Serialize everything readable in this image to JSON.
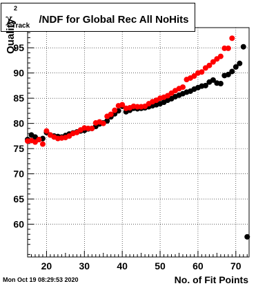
{
  "title": {
    "symbol": "χ",
    "superscript": "2",
    "subscript": "Track",
    "text": "/NDF for Global Rec All NoHits"
  },
  "ylabel": "Quality",
  "xlabel": "No. of Fit Points",
  "datestamp": "Mon Oct 19 08:29:53 2020",
  "colors": {
    "series_black": "#000000",
    "series_red": "#ff0000"
  },
  "chart_data": {
    "type": "scatter",
    "xlim": [
      15,
      73.5
    ],
    "ylim": [
      53.5,
      99
    ],
    "grid": true,
    "xticks": [
      20,
      30,
      40,
      50,
      60,
      70
    ],
    "yticks": [
      60,
      65,
      70,
      75,
      80,
      85,
      90,
      95
    ],
    "series": [
      {
        "color": "black",
        "x": [
          15,
          16,
          17,
          18,
          19,
          20,
          21,
          22,
          23,
          24,
          25,
          26,
          27,
          28,
          29,
          30,
          31,
          32,
          33,
          34,
          35,
          36,
          37,
          38,
          39,
          40,
          41,
          42,
          43,
          44,
          45,
          46,
          47,
          48,
          49,
          50,
          51,
          52,
          53,
          54,
          55,
          56,
          57,
          58,
          59,
          60,
          61,
          62,
          63,
          64,
          65,
          66,
          67,
          68,
          69,
          70,
          71,
          72,
          73
        ],
        "y": [
          76.8,
          77.7,
          77.3,
          76.8,
          77.0,
          78.2,
          77.7,
          77.5,
          77.4,
          77.3,
          77.6,
          77.9,
          78.1,
          78.3,
          78.5,
          78.6,
          78.9,
          79.0,
          79.4,
          79.9,
          80.1,
          80.5,
          81.3,
          81.9,
          82.5,
          83.4,
          82.3,
          82.6,
          83.0,
          82.9,
          83.0,
          83.1,
          83.3,
          83.5,
          83.7,
          83.9,
          84.2,
          84.6,
          84.9,
          85.3,
          85.6,
          85.9,
          86.2,
          86.4,
          86.8,
          87.1,
          87.4,
          87.5,
          88.2,
          88.6,
          88.0,
          87.9,
          89.5,
          89.7,
          90.3,
          91.2,
          91.9,
          95.2,
          57.5
        ]
      },
      {
        "color": "red",
        "x": [
          15,
          16,
          17,
          18,
          19,
          20,
          21,
          22,
          23,
          24,
          25,
          26,
          27,
          28,
          29,
          30,
          31,
          32,
          33,
          34,
          35,
          36,
          37,
          38,
          39,
          40,
          41,
          42,
          43,
          44,
          45,
          46,
          47,
          48,
          49,
          50,
          51,
          52,
          53,
          54,
          55,
          56,
          57,
          58,
          59,
          60,
          61,
          62,
          63,
          64,
          65,
          66,
          67,
          68,
          69,
          70
        ],
        "y": [
          76.5,
          76.6,
          76.3,
          76.8,
          75.9,
          78.5,
          77.7,
          77.3,
          77.0,
          77.1,
          77.2,
          77.5,
          78.0,
          78.2,
          78.7,
          79.1,
          79.0,
          79.0,
          80.1,
          80.3,
          80.0,
          81.4,
          81.8,
          82.6,
          83.5,
          83.7,
          83.0,
          83.1,
          83.4,
          83.3,
          83.3,
          83.4,
          83.9,
          84.3,
          84.6,
          85.0,
          85.2,
          85.5,
          86.0,
          86.5,
          86.9,
          87.2,
          88.7,
          89.0,
          89.4,
          90.0,
          90.2,
          91.0,
          91.5,
          92.2,
          92.8,
          93.3,
          94.9,
          94.9,
          96.9,
          null
        ]
      }
    ]
  }
}
